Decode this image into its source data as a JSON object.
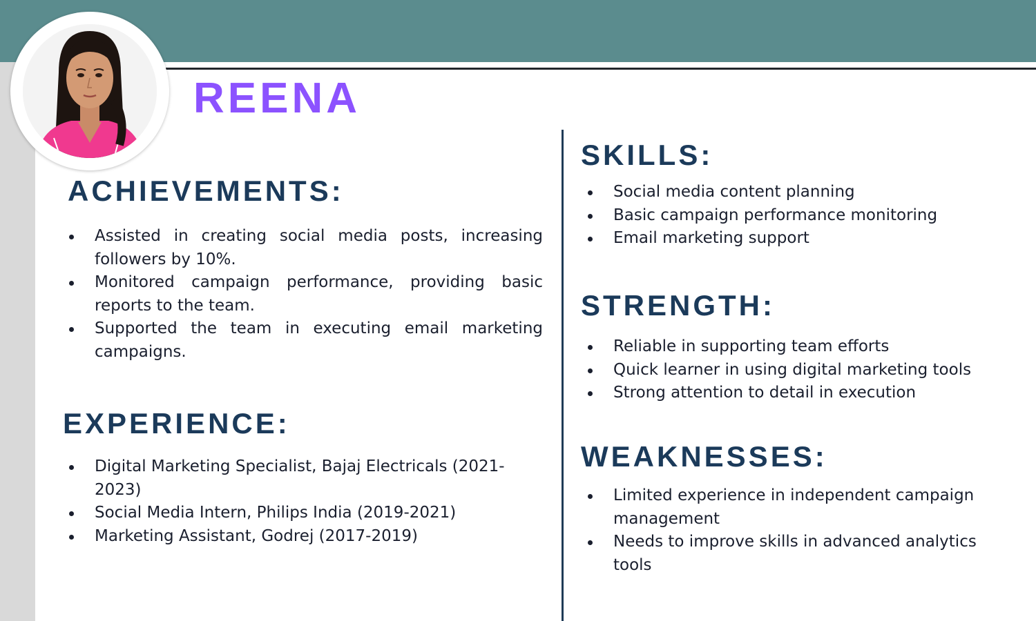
{
  "name": "REENA",
  "colors": {
    "header_bar": "#5b8c8e",
    "name_accent": "#8c52ff",
    "heading": "#1b3a5a",
    "side_strip": "#d9d9d9"
  },
  "profile_photo": "profile-photo",
  "achievements": {
    "heading": "ACHIEVEMENTS:",
    "items": [
      "Assisted in creating social media posts, increasing followers by 10%.",
      "Monitored campaign performance, providing basic reports to the team.",
      "Supported the team in executing email marketing campaigns."
    ]
  },
  "experience": {
    "heading": "EXPERIENCE:",
    "items": [
      "Digital Marketing Specialist, Bajaj Electricals (2021-2023)",
      "Social Media Intern, Philips India (2019-2021)",
      "Marketing Assistant, Godrej (2017-2019)"
    ]
  },
  "skills": {
    "heading": "SKILLS:",
    "items": [
      "Social media content planning",
      "Basic campaign performance monitoring",
      "Email marketing support"
    ]
  },
  "strength": {
    "heading": "STRENGTH:",
    "items": [
      "Reliable in supporting team efforts",
      "Quick learner in using digital marketing tools",
      "Strong attention to detail in execution"
    ]
  },
  "weaknesses": {
    "heading": "WEAKNESSES:",
    "items": [
      "Limited experience in independent campaign management",
      "Needs to improve skills in advanced analytics tools"
    ]
  }
}
